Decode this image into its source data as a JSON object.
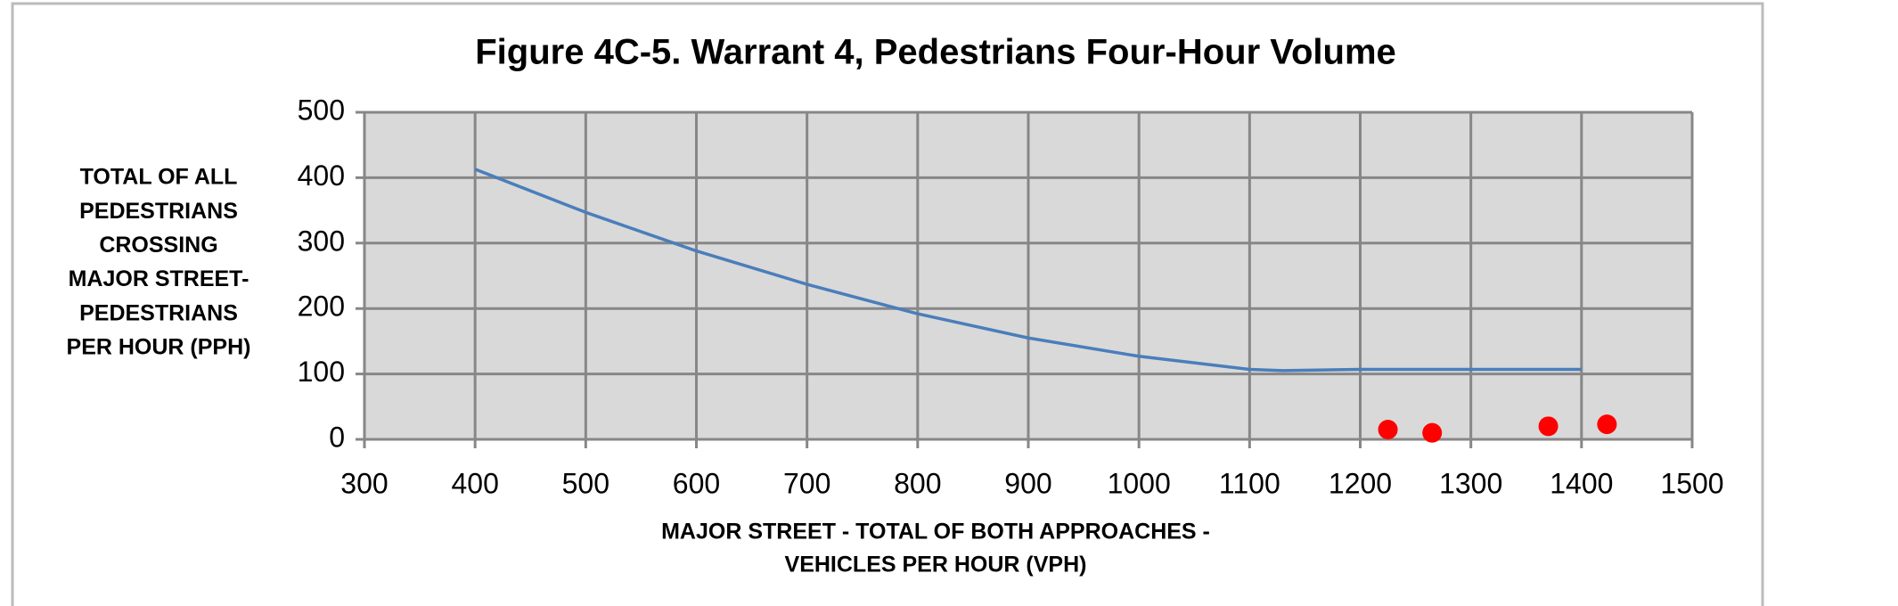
{
  "chart_data": {
    "type": "line",
    "title": "Figure 4C-5. Warrant 4, Pedestrians Four-Hour Volume",
    "x_label": [
      "MAJOR STREET - TOTAL OF BOTH APPROACHES -",
      "VEHICLES PER HOUR (VPH)"
    ],
    "y_label": [
      "TOTAL OF ALL",
      "PEDESTRIANS",
      "CROSSING",
      "MAJOR STREET-",
      "PEDESTRIANS",
      "PER HOUR (PPH)"
    ],
    "xlim": [
      300,
      1500
    ],
    "xticks": [
      300,
      400,
      500,
      600,
      700,
      800,
      900,
      1000,
      1100,
      1200,
      1300,
      1400,
      1500
    ],
    "ylim": [
      0,
      500
    ],
    "yticks": [
      0,
      100,
      200,
      300,
      400,
      500
    ],
    "grid": true,
    "series": [
      {
        "type": "line",
        "color": "#4a7ebb",
        "x": [
          400,
          500,
          600,
          700,
          800,
          900,
          1000,
          1100,
          1130,
          1200,
          1300,
          1400
        ],
        "values": [
          413,
          347,
          288,
          237,
          192,
          155,
          127,
          107,
          105,
          107,
          107,
          107
        ]
      },
      {
        "type": "scatter",
        "color": "#ff0000",
        "x": [
          1225,
          1265,
          1370,
          1423
        ],
        "values": [
          15,
          10,
          20,
          23
        ]
      }
    ]
  }
}
